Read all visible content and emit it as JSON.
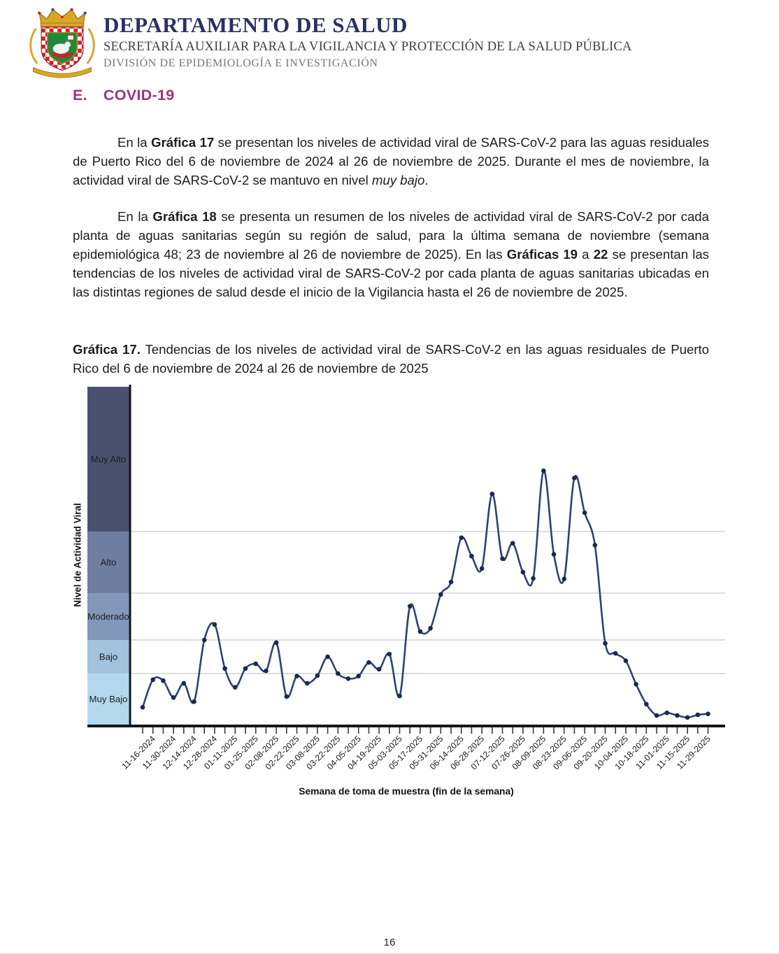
{
  "header": {
    "logo": "puerto-rico-coat-of-arms",
    "title": "DEPARTAMENTO DE SALUD",
    "subtitle1": "SECRETARÍA AUXILIAR PARA LA VIGILANCIA Y PROTECCIÓN DE LA SALUD PÚBLICA",
    "subtitle2": "DIVISIÓN DE EPIDEMIOLOGÍA E INVESTIGACIÓN"
  },
  "section": {
    "label": "E.",
    "title": "COVID-19",
    "accent_color": "#a13180"
  },
  "paragraph1": [
    {
      "t": "En la "
    },
    {
      "t": "Gráfica 17",
      "b": true
    },
    {
      "t": " se presentan los niveles de actividad viral de SARS-CoV-2 para las aguas residuales de Puerto Rico del 6 de noviembre de 2024 al 26 de noviembre de 2025. Durante el mes de noviembre, la actividad viral de SARS-CoV-2 se mantuvo en nivel "
    },
    {
      "t": "muy bajo",
      "i": true
    },
    {
      "t": "."
    }
  ],
  "paragraph2": [
    {
      "t": "En la "
    },
    {
      "t": "Gráfica 18",
      "b": true
    },
    {
      "t": " se presenta un resumen de los niveles de actividad viral de SARS-CoV-2 por cada planta de aguas sanitarias según su región de salud, para la última semana de noviembre (semana epidemiológica 48; 23 de noviembre al 26 de noviembre de 2025). En las "
    },
    {
      "t": "Gráficas 19",
      "b": true
    },
    {
      "t": " a "
    },
    {
      "t": "22",
      "b": true
    },
    {
      "t": " se presentan las tendencias de los niveles de actividad viral de SARS-CoV-2 por cada planta de aguas sanitarias ubicadas en las distintas regiones de salud desde el inicio de la Vigilancia hasta el 26 de noviembre de 2025."
    }
  ],
  "caption": [
    {
      "t": "Gráfica 17.",
      "b": true
    },
    {
      "t": " Tendencias de los niveles de actividad viral de SARS-CoV-2 en las aguas residuales de Puerto Rico del 6 de noviembre de 2024 al 26 de noviembre de 2025"
    }
  ],
  "chart_data": {
    "type": "line",
    "xlabel": "Semana de toma de muestra (fin de la semana)",
    "ylabel": "Nivel de Actividad Viral",
    "line_color": "#2e4370",
    "marker_color": "#1a2950",
    "grid_color": "#c9c9c9",
    "bands": [
      {
        "label": "Muy Alto",
        "color": "#4a5170",
        "value_range": [
          4,
          5
        ],
        "height_frac": 0.4286
      },
      {
        "label": "Alto",
        "color": "#6e7da0",
        "value_range": [
          3,
          4
        ],
        "height_frac": 0.1822
      },
      {
        "label": "Moderado",
        "color": "#8297ba",
        "value_range": [
          2,
          3
        ],
        "height_frac": 0.1387
      },
      {
        "label": "Bajo",
        "color": "#a2c2de",
        "value_range": [
          1,
          2
        ],
        "height_frac": 0.0994
      },
      {
        "label": "Muy Bajo",
        "color": "#b2d8ee",
        "value_range": [
          0,
          1
        ],
        "height_frac": 0.1511
      }
    ],
    "x": [
      "11-09-2024",
      "11-16-2024",
      "11-23-2024",
      "11-30-2024",
      "12-07-2024",
      "12-14-2024",
      "12-21-2024",
      "12-28-2024",
      "01-04-2025",
      "01-11-2025",
      "01-18-2025",
      "01-25-2025",
      "02-01-2025",
      "02-08-2025",
      "02-15-2025",
      "02-22-2025",
      "03-01-2025",
      "03-08-2025",
      "03-15-2025",
      "03-22-2025",
      "03-29-2025",
      "04-05-2025",
      "04-12-2025",
      "04-19-2025",
      "04-26-2025",
      "05-03-2025",
      "05-10-2025",
      "05-17-2025",
      "05-24-2025",
      "05-31-2025",
      "06-07-2025",
      "06-14-2025",
      "06-21-2025",
      "06-28-2025",
      "07-05-2025",
      "07-12-2025",
      "07-19-2025",
      "07-26-2025",
      "08-02-2025",
      "08-09-2025",
      "08-16-2025",
      "08-23-2025",
      "08-30-2025",
      "09-06-2025",
      "09-13-2025",
      "09-20-2025",
      "09-27-2025",
      "10-04-2025",
      "10-11-2025",
      "10-18-2025",
      "10-25-2025",
      "11-01-2025",
      "11-08-2025",
      "11-15-2025",
      "11-22-2025",
      "11-29-2025"
    ],
    "values": [
      0.34,
      0.88,
      0.86,
      0.53,
      0.81,
      0.45,
      2.0,
      2.33,
      1.15,
      0.73,
      1.15,
      1.29,
      1.08,
      1.92,
      0.55,
      0.95,
      0.81,
      0.96,
      1.5,
      1.0,
      0.9,
      0.95,
      1.33,
      1.13,
      1.58,
      0.56,
      2.72,
      2.18,
      2.25,
      2.97,
      3.18,
      3.9,
      3.6,
      3.4,
      4.26,
      3.56,
      3.81,
      3.34,
      3.24,
      4.42,
      3.63,
      3.23,
      4.37,
      4.13,
      3.78,
      1.9,
      1.6,
      1.38,
      0.79,
      0.4,
      0.18,
      0.23,
      0.18,
      0.14,
      0.19,
      0.21
    ],
    "x_tick_labels": [
      "11-16-2024",
      "11-30-2024",
      "12-14-2024",
      "12-28-2024",
      "01-11-2025",
      "01-25-2025",
      "02-08-2025",
      "02-22-2025",
      "03-08-2025",
      "03-22-2025",
      "04-05-2025",
      "04-19-2025",
      "05-03-2025",
      "05-17-2025",
      "05-31-2025",
      "06-14-2025",
      "06-28-2025",
      "07-12-2025",
      "07-26-2025",
      "08-09-2025",
      "08-23-2025",
      "09-06-2025",
      "09-20-2025",
      "10-04-2025",
      "10-18-2025",
      "11-01-2025",
      "11-15-2025",
      "11-29-2025"
    ],
    "levels_legend": [
      "Muy Bajo",
      "Bajo",
      "Moderado",
      "Alto",
      "Muy Alto"
    ]
  },
  "page": {
    "number": "16"
  }
}
